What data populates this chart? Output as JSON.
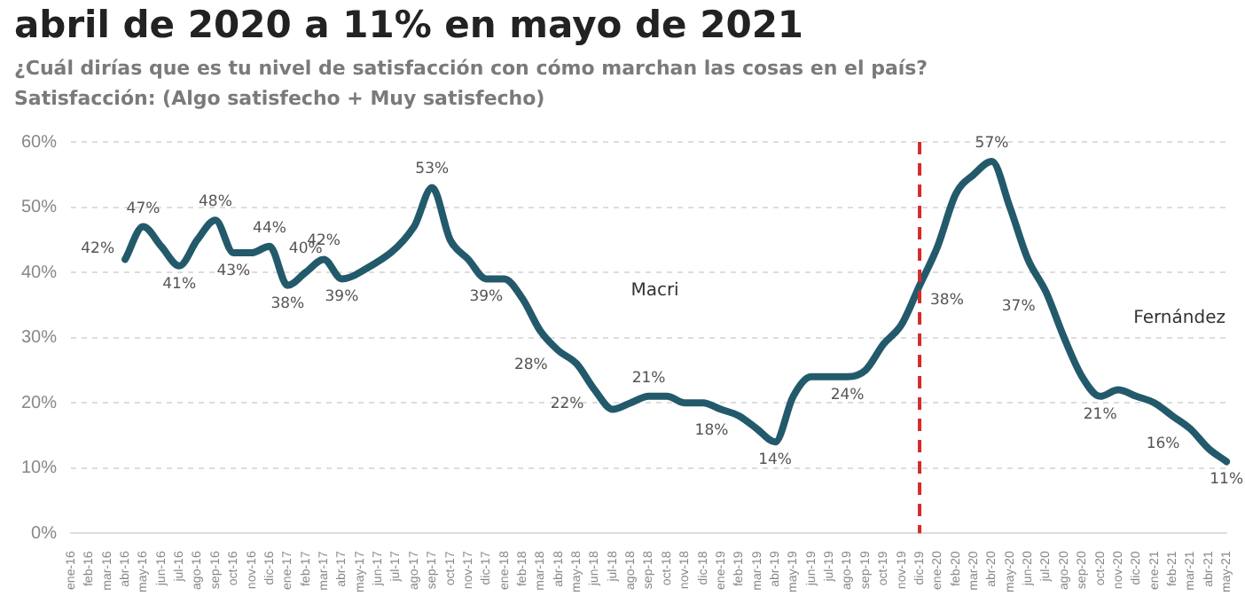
{
  "chart_data": {
    "type": "line",
    "title": "abril de 2020 a 11% en mayo de 2021",
    "subtitle": "¿Cuál dirías que es tu nivel de satisfacción con cómo marchan las cosas en el país?",
    "categories": [
      "ene-16",
      "feb-16",
      "mar-16",
      "abr-16",
      "may-16",
      "jun-16",
      "jul-16",
      "ago-16",
      "sep-16",
      "oct-16",
      "nov-16",
      "dic-16",
      "ene-17",
      "feb-17",
      "mar-17",
      "abr-17",
      "may-17",
      "jun-17",
      "jul-17",
      "ago-17",
      "sep-17",
      "oct-17",
      "nov-17",
      "dic-17",
      "ene-18",
      "feb-18",
      "mar-18",
      "abr-18",
      "may-18",
      "jun-18",
      "jul-18",
      "ago-18",
      "sep-18",
      "oct-18",
      "nov-18",
      "dic-18",
      "ene-19",
      "feb-19",
      "mar-19",
      "abr-19",
      "may-19",
      "jun-19",
      "jul-19",
      "ago-19",
      "sep-19",
      "oct-19",
      "nov-19",
      "dic-19",
      "ene-20",
      "feb-20",
      "mar-20",
      "abr-20",
      "may-20",
      "jun-20",
      "jul-20",
      "ago-20",
      "sep-20",
      "oct-20",
      "nov-20",
      "dic-20",
      "ene-21",
      "feb-21",
      "mar-21",
      "abr-21",
      "may-21"
    ],
    "series": [
      {
        "color": "#235a6b",
        "values": [
          null,
          null,
          null,
          42,
          47,
          44,
          41,
          45,
          48,
          43,
          43,
          44,
          38,
          40,
          42,
          39,
          40,
          null,
          null,
          47,
          53,
          45,
          42,
          39,
          39,
          36,
          31,
          28,
          26,
          22,
          19,
          20,
          21,
          21,
          20,
          20,
          19,
          18,
          16,
          14,
          21,
          24,
          24,
          24,
          25,
          29,
          32,
          38,
          44,
          52,
          55,
          57,
          50,
          42,
          37,
          30,
          24,
          21,
          22,
          21,
          20,
          18,
          16,
          13,
          11
        ],
        "value_labels": [
          null,
          null,
          null,
          "42%",
          "47%",
          null,
          "41%",
          null,
          "48%",
          "43%",
          null,
          "44%",
          "38%",
          "40%",
          "42%",
          "39%",
          null,
          null,
          null,
          null,
          "53%",
          null,
          null,
          "39%",
          null,
          null,
          null,
          "28%",
          null,
          "22%",
          null,
          null,
          "21%",
          null,
          null,
          null,
          null,
          "18%",
          null,
          "14%",
          null,
          null,
          null,
          "24%",
          null,
          null,
          null,
          "38%",
          null,
          null,
          null,
          "57%",
          null,
          null,
          "37%",
          null,
          null,
          "21%",
          null,
          null,
          null,
          null,
          "16%",
          null,
          "11%"
        ]
      }
    ],
    "ylim": [
      0,
      60
    ],
    "yticks": [
      {
        "value": 0,
        "label": "0%"
      },
      {
        "value": 10,
        "label": "10%"
      },
      {
        "value": 20,
        "label": "20%"
      },
      {
        "value": 30,
        "label": "30%"
      },
      {
        "value": 40,
        "label": "40%"
      },
      {
        "value": 50,
        "label": "50%"
      },
      {
        "value": 60,
        "label": "60%"
      }
    ],
    "grid": "y",
    "legend": false,
    "marker": "none",
    "line_style": "solid",
    "ref_lines": [
      {
        "axis": "x",
        "value": "dic-19",
        "color": "#d62b2b",
        "line_style": "dashed"
      }
    ],
    "annotations": [
      "Satisfacción: (Algo satisfecho + Muy satisfecho)",
      "Macri",
      "Fernández"
    ]
  }
}
